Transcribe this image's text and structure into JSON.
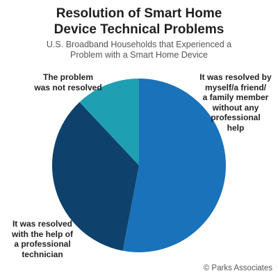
{
  "chart_data": {
    "type": "pie",
    "title_lines": [
      "Resolution of Smart Home",
      "Device Technical Problems"
    ],
    "subtitle_lines": [
      "U.S. Broadband Households that Experienced a",
      "Problem with a Smart Home Device"
    ],
    "slices": [
      {
        "label_lines": [
          "It was resolved by",
          "myself/a friend/",
          "a family member",
          "without any",
          "professional",
          "help"
        ],
        "value": 53,
        "color": "#1a72bb"
      },
      {
        "label_lines": [
          "It was resolved",
          "with the help of",
          "a professional",
          "technician"
        ],
        "value": 35,
        "color": "#0e416b"
      },
      {
        "label_lines": [
          "The problem",
          "was not resolved"
        ],
        "value": 12,
        "color": "#1fa0b2"
      }
    ],
    "start_angle_deg": 0,
    "direction": "clockwise",
    "legend": "none",
    "data_labels": "none"
  },
  "source": "© Parks Associates"
}
